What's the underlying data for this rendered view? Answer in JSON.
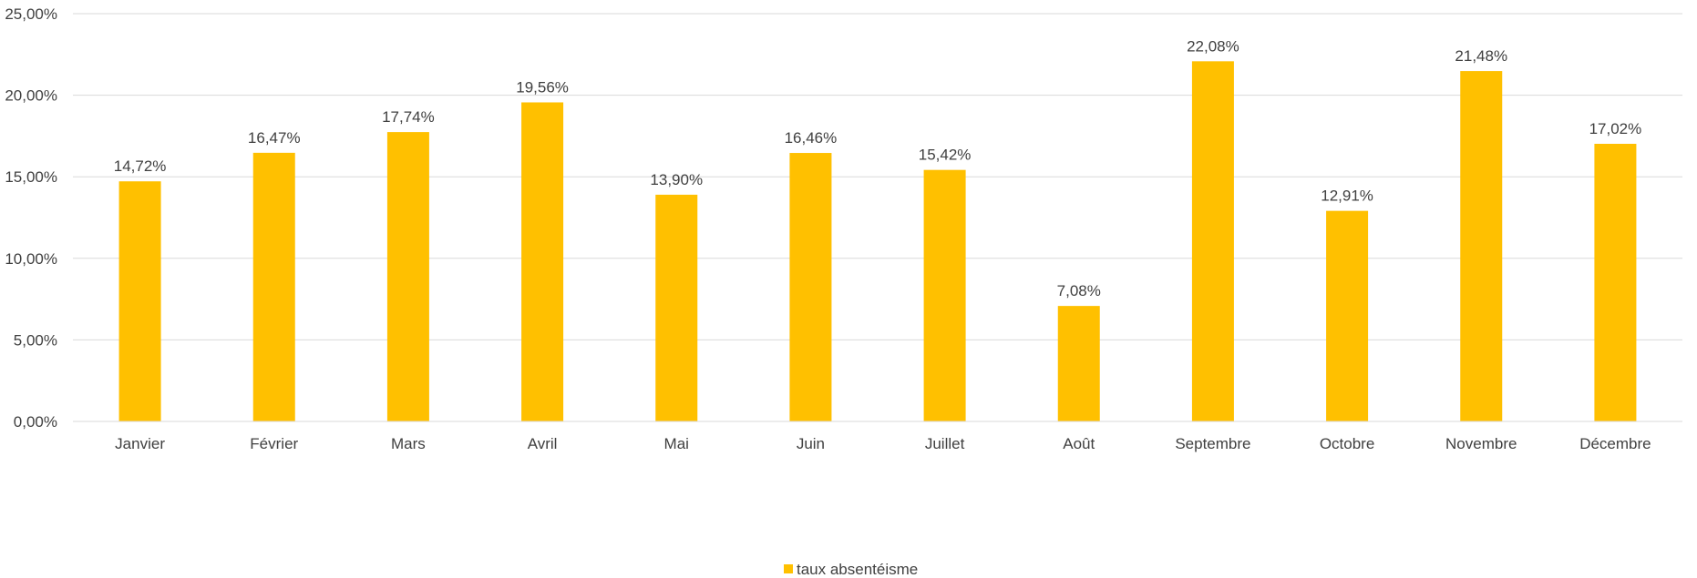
{
  "chart_data": {
    "type": "bar",
    "categories": [
      "Janvier",
      "Février",
      "Mars",
      "Avril",
      "Mai",
      "Juin",
      "Juillet",
      "Août",
      "Septembre",
      "Octobre",
      "Novembre",
      "Décembre"
    ],
    "series": [
      {
        "name": "taux absentéisme",
        "values": [
          14.72,
          16.47,
          17.74,
          19.56,
          13.9,
          16.46,
          15.42,
          7.08,
          22.08,
          12.91,
          21.48,
          17.02
        ],
        "value_labels": [
          "14,72%",
          "16,47%",
          "17,74%",
          "19,56%",
          "13,90%",
          "16,46%",
          "15,42%",
          "7,08%",
          "22,08%",
          "12,91%",
          "21,48%",
          "17,02%"
        ],
        "color": "#FFC000"
      }
    ],
    "ylim": [
      0,
      25
    ],
    "yticks": [
      0,
      5,
      10,
      15,
      20,
      25
    ],
    "ytick_labels": [
      "0,00%",
      "5,00%",
      "10,00%",
      "15,00%",
      "20,00%",
      "25,00%"
    ],
    "grid": true,
    "gridline_color": "#D9D9D9",
    "legend_position": "bottom",
    "title": "",
    "xlabel": "",
    "ylabel": ""
  }
}
